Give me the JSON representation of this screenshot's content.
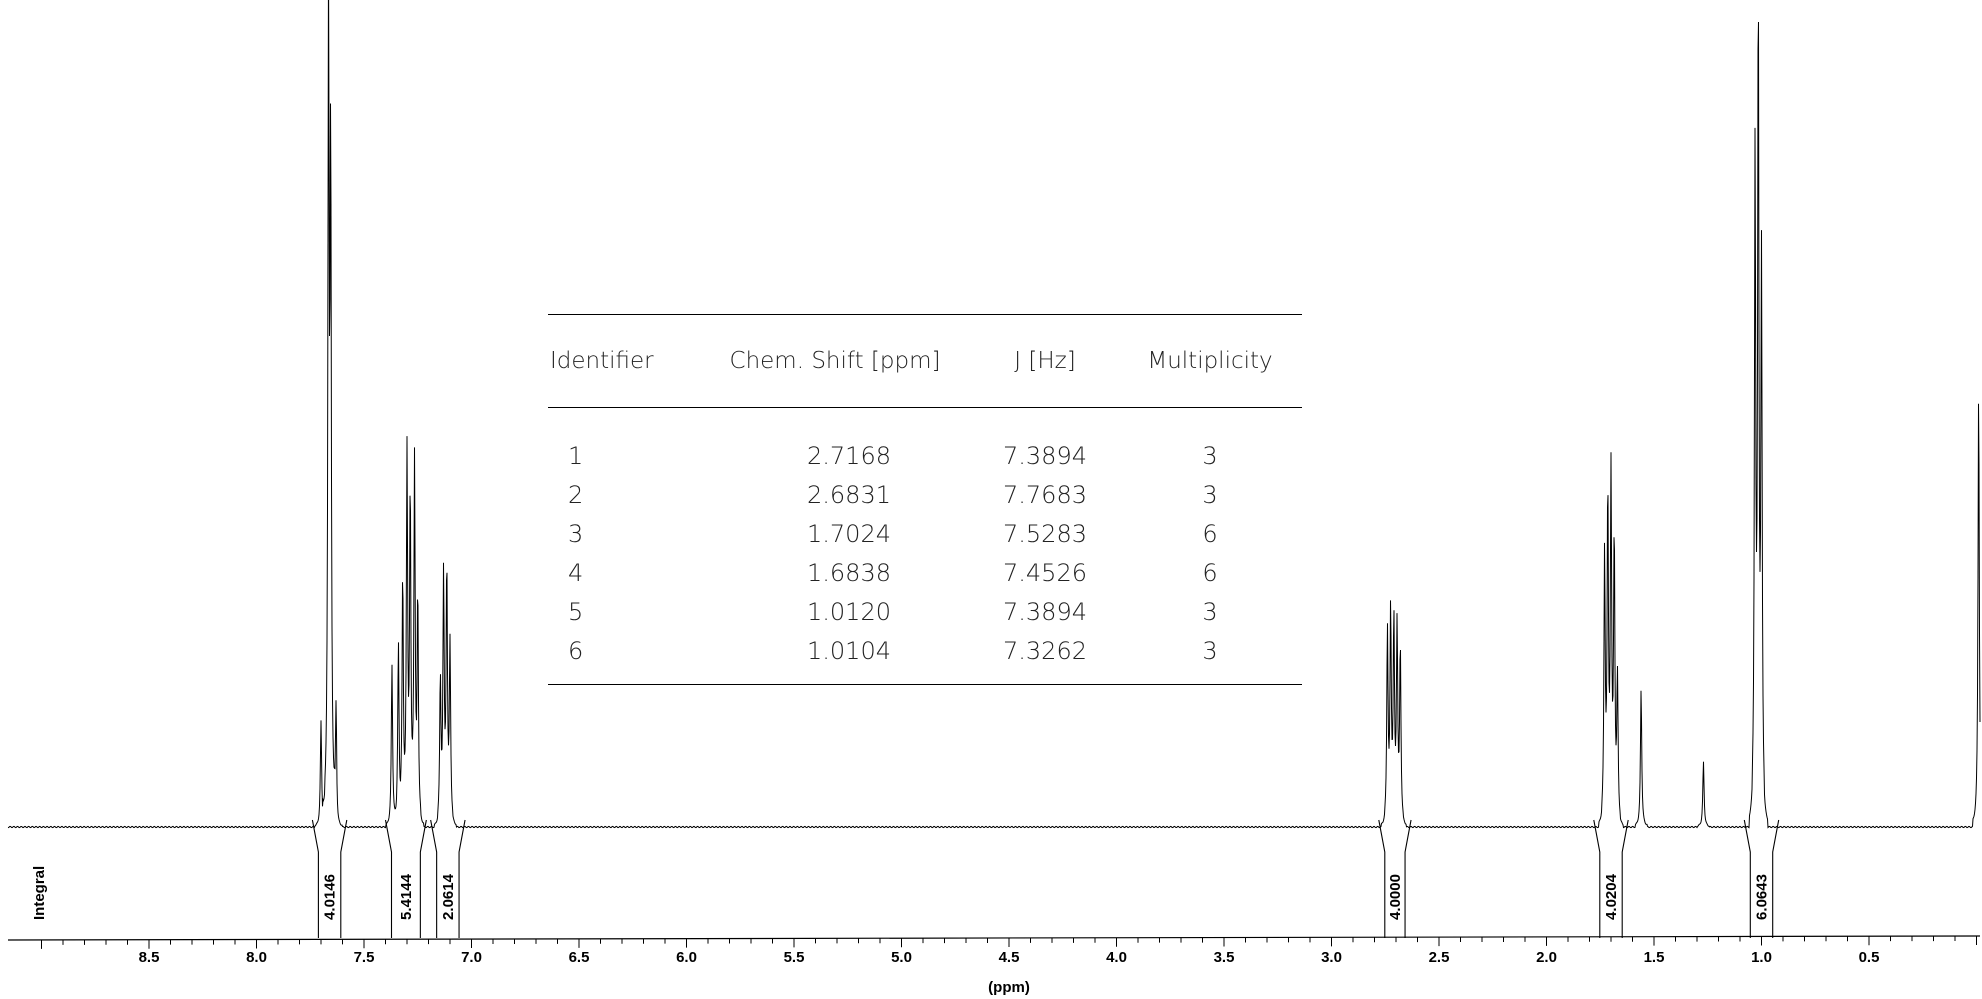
{
  "chart_data": {
    "type": "line",
    "title": "",
    "xlabel": "(ppm)",
    "ylabel": "",
    "xlim": [
      9.0,
      -0.1
    ],
    "x_ticks": [
      "8.5",
      "8.0",
      "7.5",
      "7.0",
      "6.5",
      "6.0",
      "5.5",
      "5.0",
      "4.5",
      "4.0",
      "3.5",
      "3.0",
      "2.5",
      "2.0",
      "1.5",
      "1.0",
      "0.5"
    ],
    "integral_label": "Integral",
    "integrals": [
      {
        "from": 7.74,
        "to": 7.58,
        "value": "4.0146"
      },
      {
        "from": 7.4,
        "to": 7.21,
        "value": "5.4144"
      },
      {
        "from": 7.19,
        "to": 7.03,
        "value": "2.0614"
      },
      {
        "from": 2.78,
        "to": 2.63,
        "value": "4.0000"
      },
      {
        "from": 1.78,
        "to": 1.62,
        "value": "4.0204"
      },
      {
        "from": 1.08,
        "to": 0.92,
        "value": "6.0643"
      }
    ],
    "peaks": [
      {
        "ppm": 7.665,
        "height": 0.99
      },
      {
        "ppm": 7.655,
        "height": 0.8
      },
      {
        "ppm": 7.7,
        "height": 0.13
      },
      {
        "ppm": 7.63,
        "height": 0.14
      },
      {
        "ppm": 7.34,
        "height": 0.22
      },
      {
        "ppm": 7.32,
        "height": 0.3
      },
      {
        "ppm": 7.3,
        "height": 0.45
      },
      {
        "ppm": 7.285,
        "height": 0.4
      },
      {
        "ppm": 7.265,
        "height": 0.44
      },
      {
        "ppm": 7.25,
        "height": 0.28
      },
      {
        "ppm": 7.37,
        "height": 0.2
      },
      {
        "ppm": 7.13,
        "height": 0.3
      },
      {
        "ppm": 7.115,
        "height": 0.31
      },
      {
        "ppm": 7.1,
        "height": 0.22
      },
      {
        "ppm": 7.145,
        "height": 0.18
      },
      {
        "ppm": 2.74,
        "height": 0.24
      },
      {
        "ppm": 2.725,
        "height": 0.26
      },
      {
        "ppm": 2.71,
        "height": 0.25
      },
      {
        "ppm": 2.695,
        "height": 0.24
      },
      {
        "ppm": 2.68,
        "height": 0.22
      },
      {
        "ppm": 1.73,
        "height": 0.33
      },
      {
        "ppm": 1.715,
        "height": 0.4
      },
      {
        "ppm": 1.7,
        "height": 0.42
      },
      {
        "ppm": 1.685,
        "height": 0.35
      },
      {
        "ppm": 1.67,
        "height": 0.18
      },
      {
        "ppm": 1.56,
        "height": 0.17
      },
      {
        "ppm": 1.27,
        "height": 0.08
      },
      {
        "ppm": 1.03,
        "height": 0.81
      },
      {
        "ppm": 1.015,
        "height": 0.99
      },
      {
        "ppm": 1.0,
        "height": 0.68
      },
      {
        "ppm": -0.01,
        "height": 0.54
      }
    ],
    "table": {
      "headers": [
        "Identifier",
        "Chem. Shift [ppm]",
        "J [Hz]",
        "Multiplicity"
      ],
      "rows": [
        [
          "1",
          "2.7168",
          "7.3894",
          "3"
        ],
        [
          "2",
          "2.6831",
          "7.7683",
          "3"
        ],
        [
          "3",
          "1.7024",
          "7.5283",
          "6"
        ],
        [
          "4",
          "1.6838",
          "7.4526",
          "6"
        ],
        [
          "5",
          "1.0120",
          "7.3894",
          "3"
        ],
        [
          "6",
          "1.0104",
          "7.3262",
          "3"
        ]
      ]
    }
  }
}
